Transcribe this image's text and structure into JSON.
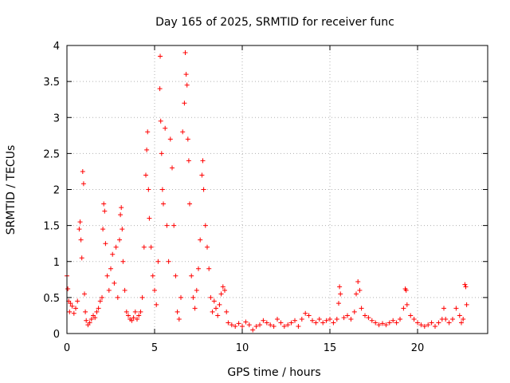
{
  "chart_data": {
    "type": "scatter",
    "title": "Day 165 of 2025, SRMTID for receiver func",
    "xlabel": "GPS time / hours",
    "ylabel": "SRMTID / TECUs",
    "xlim": [
      0,
      24
    ],
    "ylim": [
      0,
      4
    ],
    "xticks": [
      0,
      5,
      10,
      15,
      20
    ],
    "yticks": [
      0,
      0.5,
      1,
      1.5,
      2,
      2.5,
      3,
      3.5,
      4
    ],
    "grid": true,
    "marker": "+",
    "colors": {
      "series": "#ff0000",
      "grid": "#b0b0b0",
      "axis": "#000000"
    },
    "series": [
      {
        "name": "SRMTID",
        "points": [
          [
            0.0,
            0.8
          ],
          [
            0.05,
            0.62
          ],
          [
            0.1,
            0.45
          ],
          [
            0.15,
            0.3
          ],
          [
            0.2,
            0.42
          ],
          [
            0.3,
            0.38
          ],
          [
            0.4,
            0.28
          ],
          [
            0.5,
            0.35
          ],
          [
            0.6,
            0.45
          ],
          [
            0.7,
            1.45
          ],
          [
            0.75,
            1.55
          ],
          [
            0.8,
            1.3
          ],
          [
            0.85,
            1.05
          ],
          [
            0.9,
            2.25
          ],
          [
            0.95,
            2.08
          ],
          [
            1.0,
            0.55
          ],
          [
            1.05,
            0.3
          ],
          [
            1.1,
            0.18
          ],
          [
            1.2,
            0.12
          ],
          [
            1.3,
            0.15
          ],
          [
            1.4,
            0.2
          ],
          [
            1.5,
            0.25
          ],
          [
            1.6,
            0.22
          ],
          [
            1.7,
            0.3
          ],
          [
            1.8,
            0.35
          ],
          [
            1.9,
            0.45
          ],
          [
            2.0,
            0.5
          ],
          [
            2.05,
            1.45
          ],
          [
            2.1,
            1.8
          ],
          [
            2.15,
            1.7
          ],
          [
            2.2,
            1.25
          ],
          [
            2.3,
            0.8
          ],
          [
            2.4,
            0.6
          ],
          [
            2.5,
            0.9
          ],
          [
            2.6,
            1.1
          ],
          [
            2.7,
            0.7
          ],
          [
            2.8,
            1.2
          ],
          [
            2.9,
            0.5
          ],
          [
            3.0,
            1.3
          ],
          [
            3.05,
            1.65
          ],
          [
            3.1,
            1.75
          ],
          [
            3.15,
            1.45
          ],
          [
            3.2,
            1.0
          ],
          [
            3.3,
            0.6
          ],
          [
            3.4,
            0.3
          ],
          [
            3.5,
            0.25
          ],
          [
            3.6,
            0.2
          ],
          [
            3.7,
            0.18
          ],
          [
            3.8,
            0.22
          ],
          [
            3.9,
            0.3
          ],
          [
            4.0,
            0.2
          ],
          [
            4.1,
            0.25
          ],
          [
            4.2,
            0.3
          ],
          [
            4.3,
            0.5
          ],
          [
            4.4,
            1.2
          ],
          [
            4.5,
            2.2
          ],
          [
            4.55,
            2.55
          ],
          [
            4.6,
            2.8
          ],
          [
            4.65,
            2.0
          ],
          [
            4.7,
            1.6
          ],
          [
            4.8,
            1.2
          ],
          [
            4.9,
            0.8
          ],
          [
            5.0,
            0.6
          ],
          [
            5.1,
            0.4
          ],
          [
            5.2,
            1.0
          ],
          [
            5.3,
            3.4
          ],
          [
            5.32,
            3.85
          ],
          [
            5.35,
            2.95
          ],
          [
            5.4,
            2.5
          ],
          [
            5.45,
            2.0
          ],
          [
            5.5,
            1.8
          ],
          [
            5.6,
            2.85
          ],
          [
            5.7,
            1.5
          ],
          [
            5.8,
            1.0
          ],
          [
            5.9,
            2.7
          ],
          [
            6.0,
            2.3
          ],
          [
            6.1,
            1.5
          ],
          [
            6.2,
            0.8
          ],
          [
            6.3,
            0.3
          ],
          [
            6.4,
            0.2
          ],
          [
            6.5,
            0.5
          ],
          [
            6.6,
            2.8
          ],
          [
            6.7,
            3.2
          ],
          [
            6.75,
            3.9
          ],
          [
            6.8,
            3.6
          ],
          [
            6.85,
            3.45
          ],
          [
            6.9,
            2.7
          ],
          [
            6.95,
            2.4
          ],
          [
            7.0,
            1.8
          ],
          [
            7.1,
            0.8
          ],
          [
            7.2,
            0.5
          ],
          [
            7.3,
            0.35
          ],
          [
            7.4,
            0.6
          ],
          [
            7.5,
            0.9
          ],
          [
            7.6,
            1.3
          ],
          [
            7.7,
            2.2
          ],
          [
            7.75,
            2.4
          ],
          [
            7.8,
            2.0
          ],
          [
            7.9,
            1.5
          ],
          [
            8.0,
            1.2
          ],
          [
            8.1,
            0.9
          ],
          [
            8.2,
            0.5
          ],
          [
            8.3,
            0.3
          ],
          [
            8.4,
            0.45
          ],
          [
            8.5,
            0.35
          ],
          [
            8.6,
            0.25
          ],
          [
            8.7,
            0.4
          ],
          [
            8.8,
            0.55
          ],
          [
            8.9,
            0.65
          ],
          [
            9.0,
            0.6
          ],
          [
            9.1,
            0.3
          ],
          [
            9.2,
            0.15
          ],
          [
            9.4,
            0.12
          ],
          [
            9.6,
            0.1
          ],
          [
            9.8,
            0.14
          ],
          [
            10.0,
            0.1
          ],
          [
            10.2,
            0.16
          ],
          [
            10.4,
            0.12
          ],
          [
            10.6,
            0.05
          ],
          [
            10.8,
            0.1
          ],
          [
            11.0,
            0.12
          ],
          [
            11.2,
            0.18
          ],
          [
            11.4,
            0.15
          ],
          [
            11.6,
            0.12
          ],
          [
            11.8,
            0.1
          ],
          [
            12.0,
            0.2
          ],
          [
            12.2,
            0.15
          ],
          [
            12.4,
            0.1
          ],
          [
            12.6,
            0.12
          ],
          [
            12.8,
            0.15
          ],
          [
            13.0,
            0.18
          ],
          [
            13.2,
            0.1
          ],
          [
            13.4,
            0.2
          ],
          [
            13.6,
            0.28
          ],
          [
            13.8,
            0.25
          ],
          [
            14.0,
            0.18
          ],
          [
            14.2,
            0.15
          ],
          [
            14.4,
            0.2
          ],
          [
            14.6,
            0.15
          ],
          [
            14.8,
            0.18
          ],
          [
            15.0,
            0.2
          ],
          [
            15.2,
            0.15
          ],
          [
            15.4,
            0.2
          ],
          [
            15.5,
            0.42
          ],
          [
            15.55,
            0.65
          ],
          [
            15.6,
            0.55
          ],
          [
            15.8,
            0.22
          ],
          [
            16.0,
            0.25
          ],
          [
            16.2,
            0.2
          ],
          [
            16.4,
            0.3
          ],
          [
            16.5,
            0.55
          ],
          [
            16.6,
            0.72
          ],
          [
            16.7,
            0.6
          ],
          [
            16.8,
            0.35
          ],
          [
            17.0,
            0.25
          ],
          [
            17.2,
            0.22
          ],
          [
            17.4,
            0.18
          ],
          [
            17.6,
            0.15
          ],
          [
            17.8,
            0.12
          ],
          [
            18.0,
            0.14
          ],
          [
            18.2,
            0.12
          ],
          [
            18.4,
            0.15
          ],
          [
            18.6,
            0.18
          ],
          [
            18.8,
            0.15
          ],
          [
            19.0,
            0.2
          ],
          [
            19.2,
            0.35
          ],
          [
            19.3,
            0.62
          ],
          [
            19.35,
            0.6
          ],
          [
            19.4,
            0.4
          ],
          [
            19.6,
            0.25
          ],
          [
            19.8,
            0.2
          ],
          [
            20.0,
            0.15
          ],
          [
            20.2,
            0.12
          ],
          [
            20.4,
            0.1
          ],
          [
            20.6,
            0.12
          ],
          [
            20.8,
            0.15
          ],
          [
            21.0,
            0.1
          ],
          [
            21.2,
            0.15
          ],
          [
            21.4,
            0.2
          ],
          [
            21.5,
            0.35
          ],
          [
            21.6,
            0.2
          ],
          [
            21.8,
            0.15
          ],
          [
            22.0,
            0.2
          ],
          [
            22.2,
            0.35
          ],
          [
            22.4,
            0.25
          ],
          [
            22.5,
            0.15
          ],
          [
            22.6,
            0.2
          ],
          [
            22.7,
            0.68
          ],
          [
            22.75,
            0.65
          ],
          [
            22.8,
            0.4
          ]
        ]
      }
    ]
  }
}
